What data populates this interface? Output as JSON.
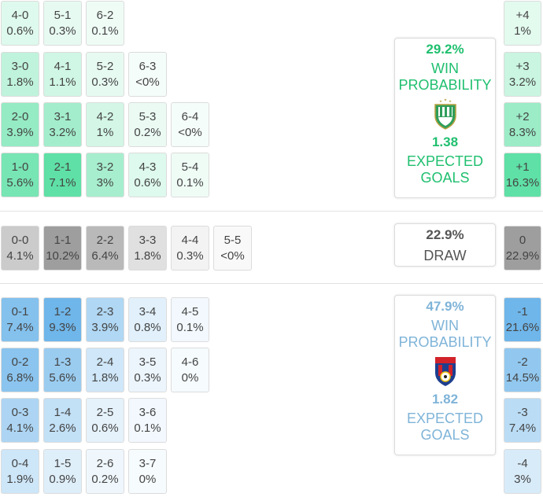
{
  "home_rows": [
    [
      {
        "s": "4-0",
        "p": "0.6%"
      },
      {
        "s": "5-1",
        "p": "0.3%"
      },
      {
        "s": "6-2",
        "p": "0.1%"
      }
    ],
    [
      {
        "s": "3-0",
        "p": "1.8%"
      },
      {
        "s": "4-1",
        "p": "1.1%"
      },
      {
        "s": "5-2",
        "p": "0.3%"
      },
      {
        "s": "6-3",
        "p": "<0%"
      }
    ],
    [
      {
        "s": "2-0",
        "p": "3.9%"
      },
      {
        "s": "3-1",
        "p": "3.2%"
      },
      {
        "s": "4-2",
        "p": "1%"
      },
      {
        "s": "5-3",
        "p": "0.2%"
      },
      {
        "s": "6-4",
        "p": "<0%"
      }
    ],
    [
      {
        "s": "1-0",
        "p": "5.6%"
      },
      {
        "s": "2-1",
        "p": "7.1%"
      },
      {
        "s": "3-2",
        "p": "3%"
      },
      {
        "s": "4-3",
        "p": "0.6%"
      },
      {
        "s": "5-4",
        "p": "0.1%"
      }
    ]
  ],
  "draw_row": [
    {
      "s": "0-0",
      "p": "4.1%"
    },
    {
      "s": "1-1",
      "p": "10.2%"
    },
    {
      "s": "2-2",
      "p": "6.4%"
    },
    {
      "s": "3-3",
      "p": "1.8%"
    },
    {
      "s": "4-4",
      "p": "0.3%"
    },
    {
      "s": "5-5",
      "p": "<0%"
    }
  ],
  "away_rows": [
    [
      {
        "s": "0-1",
        "p": "7.4%"
      },
      {
        "s": "1-2",
        "p": "9.3%"
      },
      {
        "s": "2-3",
        "p": "3.9%"
      },
      {
        "s": "3-4",
        "p": "0.8%"
      },
      {
        "s": "4-5",
        "p": "0.1%"
      }
    ],
    [
      {
        "s": "0-2",
        "p": "6.8%"
      },
      {
        "s": "1-3",
        "p": "5.6%"
      },
      {
        "s": "2-4",
        "p": "1.8%"
      },
      {
        "s": "3-5",
        "p": "0.3%"
      },
      {
        "s": "4-6",
        "p": "0%"
      }
    ],
    [
      {
        "s": "0-3",
        "p": "4.1%"
      },
      {
        "s": "1-4",
        "p": "2.6%"
      },
      {
        "s": "2-5",
        "p": "0.6%"
      },
      {
        "s": "3-6",
        "p": "0.1%"
      }
    ],
    [
      {
        "s": "0-4",
        "p": "1.9%"
      },
      {
        "s": "1-5",
        "p": "0.9%"
      },
      {
        "s": "2-6",
        "p": "0.2%"
      },
      {
        "s": "3-7",
        "p": "0%"
      }
    ]
  ],
  "margins_home": [
    {
      "s": "+4",
      "p": "1%"
    },
    {
      "s": "+3",
      "p": "3.2%"
    },
    {
      "s": "+2",
      "p": "8.3%"
    },
    {
      "s": "+1",
      "p": "16.3%"
    }
  ],
  "margin_draw": {
    "s": "0",
    "p": "22.9%"
  },
  "margins_away": [
    {
      "s": "-1",
      "p": "21.6%"
    },
    {
      "s": "-2",
      "p": "14.5%"
    },
    {
      "s": "-3",
      "p": "7.4%"
    },
    {
      "s": "-4",
      "p": "3%"
    }
  ],
  "home_card": {
    "win_pct": "29.2%",
    "win_label_1": "WIN",
    "win_label_2": "PROBABILITY",
    "xg": "1.38",
    "xg_label_1": "EXPECTED",
    "xg_label_2": "GOALS",
    "crest_icon": "ferencvaros-crest-icon"
  },
  "draw_card": {
    "pct": "22.9%",
    "label": "DRAW"
  },
  "away_card": {
    "win_pct": "47.9%",
    "win_label_1": "WIN",
    "win_label_2": "PROBABILITY",
    "xg": "1.82",
    "xg_label_1": "EXPECTED",
    "xg_label_2": "GOALS",
    "crest_icon": "viktoria-plzen-crest-icon"
  },
  "colors": {
    "home_accent": "#1fbf6f",
    "away_accent": "#7fb4d8",
    "home_max_fill": "#5fe0a6",
    "away_max_fill": "#6fb6ea",
    "draw_max_fill": "#9e9e9e"
  }
}
